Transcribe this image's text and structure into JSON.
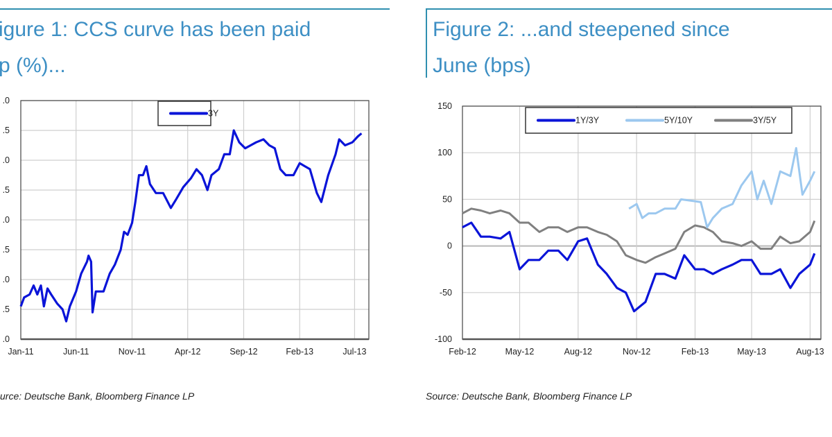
{
  "figure1": {
    "title_line1": "igure 1: CCS curve has been paid",
    "title_line2": "p (%)...",
    "source": "urce: Deutsche Bank, Bloomberg Finance LP"
  },
  "figure2": {
    "title_line1": "Figure 2: ...and steepened since",
    "title_line2": "June (bps)",
    "source": "Source: Deutsche Bank, Bloomberg Finance LP"
  },
  "colors": {
    "title": "#3d8fc4",
    "rule": "#2f8fb0",
    "dark_blue": "#0a14d8",
    "light_blue": "#9cc8ef",
    "grey": "#808080"
  },
  "chart_data": [
    {
      "type": "line",
      "title": "igure 1: CCS curve has been paid p (%)...",
      "ylim": [
        0,
        4
      ],
      "yticks": [
        ".0",
        ".5",
        ".0",
        ".5",
        ".0",
        ".5",
        ".0",
        ".5",
        ".0"
      ],
      "xticks": [
        "Jan-11",
        "Jun-11",
        "Nov-11",
        "Apr-12",
        "Sep-12",
        "Feb-13",
        "Jul-13"
      ],
      "xlim": [
        "2011-01-01",
        "2013-07-20"
      ],
      "grid": true,
      "legend": "top-center",
      "series": [
        {
          "name": "3Y",
          "color": "#0a14d8",
          "x": [
            "2011-01-01",
            "2011-01-10",
            "2011-01-25",
            "2011-02-05",
            "2011-02-15",
            "2011-02-25",
            "2011-03-05",
            "2011-03-15",
            "2011-03-25",
            "2011-04-10",
            "2011-04-25",
            "2011-05-05",
            "2011-05-15",
            "2011-06-01",
            "2011-06-15",
            "2011-07-01",
            "2011-07-05",
            "2011-07-12",
            "2011-07-16",
            "2011-07-25",
            "2011-08-15",
            "2011-09-01",
            "2011-09-15",
            "2011-10-01",
            "2011-10-10",
            "2011-10-20",
            "2011-11-01",
            "2011-11-10",
            "2011-11-20",
            "2011-12-01",
            "2011-12-10",
            "2011-12-20",
            "2012-01-05",
            "2012-01-25",
            "2012-02-15",
            "2012-03-01",
            "2012-03-20",
            "2012-04-10",
            "2012-04-25",
            "2012-05-10",
            "2012-05-25",
            "2012-06-05",
            "2012-06-25",
            "2012-07-10",
            "2012-07-25",
            "2012-08-05",
            "2012-08-20",
            "2012-09-05",
            "2012-09-20",
            "2012-10-05",
            "2012-10-25",
            "2012-11-10",
            "2012-11-25",
            "2012-12-10",
            "2012-12-25",
            "2013-01-15",
            "2013-02-01",
            "2013-02-15",
            "2013-03-01",
            "2013-03-20",
            "2013-04-01",
            "2013-04-20",
            "2013-05-10",
            "2013-05-20",
            "2013-06-05",
            "2013-06-25",
            "2013-07-10",
            "2013-07-20"
          ],
          "y": [
            0.55,
            0.7,
            0.75,
            0.9,
            0.75,
            0.9,
            0.55,
            0.85,
            0.75,
            0.6,
            0.5,
            0.3,
            0.55,
            0.8,
            1.1,
            1.3,
            1.4,
            1.3,
            0.45,
            0.8,
            0.8,
            1.1,
            1.25,
            1.5,
            1.8,
            1.75,
            1.95,
            2.3,
            2.75,
            2.75,
            2.9,
            2.6,
            2.45,
            2.45,
            2.2,
            2.35,
            2.55,
            2.7,
            2.85,
            2.75,
            2.5,
            2.75,
            2.85,
            3.1,
            3.1,
            3.5,
            3.3,
            3.2,
            3.25,
            3.3,
            3.35,
            3.25,
            3.2,
            2.85,
            2.75,
            2.75,
            2.95,
            2.9,
            2.85,
            2.45,
            2.3,
            2.75,
            3.1,
            3.35,
            3.25,
            3.3,
            3.4,
            3.45
          ]
        }
      ]
    },
    {
      "type": "line",
      "title": "Figure 2: ...and steepened since June (bps)",
      "ylim": [
        -100,
        150
      ],
      "yticks": [
        "-100",
        "-50",
        "0",
        "50",
        "100",
        "150"
      ],
      "xticks": [
        "Feb-12",
        "May-12",
        "Aug-12",
        "Nov-12",
        "Feb-13",
        "May-13",
        "Aug-13"
      ],
      "xlim": [
        "2012-02-01",
        "2013-08-08"
      ],
      "grid": true,
      "legend": "top-center",
      "series": [
        {
          "name": "1Y/3Y",
          "color": "#0a14d8",
          "x": [
            "2012-02-01",
            "2012-02-15",
            "2012-03-01",
            "2012-03-15",
            "2012-04-01",
            "2012-04-15",
            "2012-05-01",
            "2012-05-15",
            "2012-06-01",
            "2012-06-15",
            "2012-07-01",
            "2012-07-15",
            "2012-08-01",
            "2012-08-15",
            "2012-09-01",
            "2012-09-15",
            "2012-10-01",
            "2012-10-15",
            "2012-10-28",
            "2012-11-15",
            "2012-12-01",
            "2012-12-15",
            "2013-01-01",
            "2013-01-15",
            "2013-02-01",
            "2013-02-15",
            "2013-03-01",
            "2013-03-15",
            "2013-04-01",
            "2013-04-15",
            "2013-05-01",
            "2013-05-15",
            "2013-06-01",
            "2013-06-15",
            "2013-07-01",
            "2013-07-15",
            "2013-08-01",
            "2013-08-08"
          ],
          "y": [
            20,
            25,
            10,
            10,
            8,
            15,
            -25,
            -15,
            -15,
            -5,
            -5,
            -15,
            5,
            8,
            -20,
            -30,
            -45,
            -50,
            -70,
            -60,
            -30,
            -30,
            -35,
            -10,
            -25,
            -25,
            -30,
            -25,
            -20,
            -15,
            -15,
            -30,
            -30,
            -25,
            -45,
            -30,
            -20,
            -8
          ]
        },
        {
          "name": "5Y/10Y",
          "color": "#9cc8ef",
          "x": [
            "2012-10-20",
            "2012-11-01",
            "2012-11-10",
            "2012-11-20",
            "2012-12-01",
            "2012-12-15",
            "2013-01-01",
            "2013-01-10",
            "2013-02-01",
            "2013-02-10",
            "2013-02-20",
            "2013-03-01",
            "2013-03-15",
            "2013-04-01",
            "2013-04-15",
            "2013-05-01",
            "2013-05-10",
            "2013-05-20",
            "2013-06-01",
            "2013-06-15",
            "2013-07-01",
            "2013-07-10",
            "2013-07-20",
            "2013-08-01",
            "2013-08-08"
          ],
          "y": [
            40,
            45,
            30,
            35,
            35,
            40,
            40,
            50,
            48,
            47,
            20,
            30,
            40,
            45,
            65,
            80,
            50,
            70,
            45,
            80,
            75,
            105,
            55,
            70,
            80
          ]
        },
        {
          "name": "3Y/5Y",
          "color": "#808080",
          "x": [
            "2012-02-01",
            "2012-02-15",
            "2012-03-01",
            "2012-03-15",
            "2012-04-01",
            "2012-04-15",
            "2012-05-01",
            "2012-05-15",
            "2012-06-01",
            "2012-06-15",
            "2012-07-01",
            "2012-07-15",
            "2012-08-01",
            "2012-08-15",
            "2012-09-01",
            "2012-09-15",
            "2012-10-01",
            "2012-10-15",
            "2012-11-01",
            "2012-11-15",
            "2012-12-01",
            "2012-12-15",
            "2013-01-01",
            "2013-01-15",
            "2013-02-01",
            "2013-02-15",
            "2013-03-01",
            "2013-03-15",
            "2013-04-01",
            "2013-04-15",
            "2013-05-01",
            "2013-05-15",
            "2013-06-01",
            "2013-06-15",
            "2013-07-01",
            "2013-07-15",
            "2013-08-01",
            "2013-08-08"
          ],
          "y": [
            35,
            40,
            38,
            35,
            38,
            35,
            25,
            25,
            15,
            20,
            20,
            15,
            20,
            20,
            15,
            12,
            5,
            -10,
            -15,
            -18,
            -12,
            -8,
            -3,
            15,
            22,
            20,
            15,
            5,
            3,
            0,
            5,
            -3,
            -3,
            10,
            3,
            5,
            15,
            27
          ]
        }
      ]
    }
  ]
}
